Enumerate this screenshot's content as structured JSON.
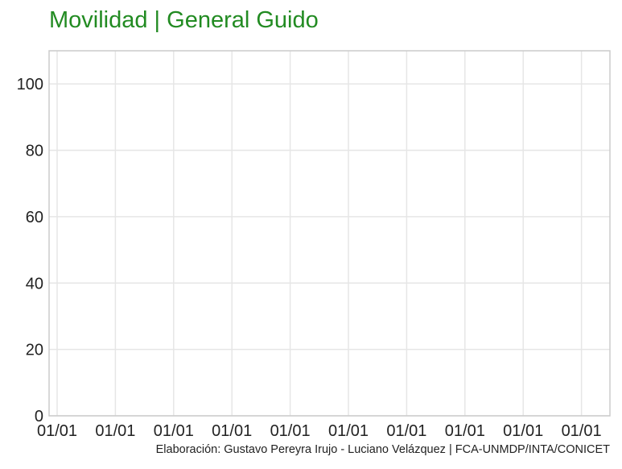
{
  "colors": {
    "title": "#228b22",
    "grid": "#e6e6e6",
    "frame": "#cccccc"
  },
  "chart_data": {
    "type": "line",
    "title": "Movilidad | General Guido",
    "caption": "Elaboración: Gustavo Pereyra Irujo - Luciano Velázquez | FCA-UNMDP/INTA/CONICET",
    "xlabel": "",
    "ylabel": "",
    "ylim": [
      0,
      110
    ],
    "yticks": [
      0,
      20,
      40,
      60,
      80,
      100
    ],
    "xticks": [
      "01/01",
      "01/01",
      "01/01",
      "01/01",
      "01/01",
      "01/01",
      "01/01",
      "01/01",
      "01/01",
      "01/01"
    ],
    "grid": true,
    "series": []
  }
}
